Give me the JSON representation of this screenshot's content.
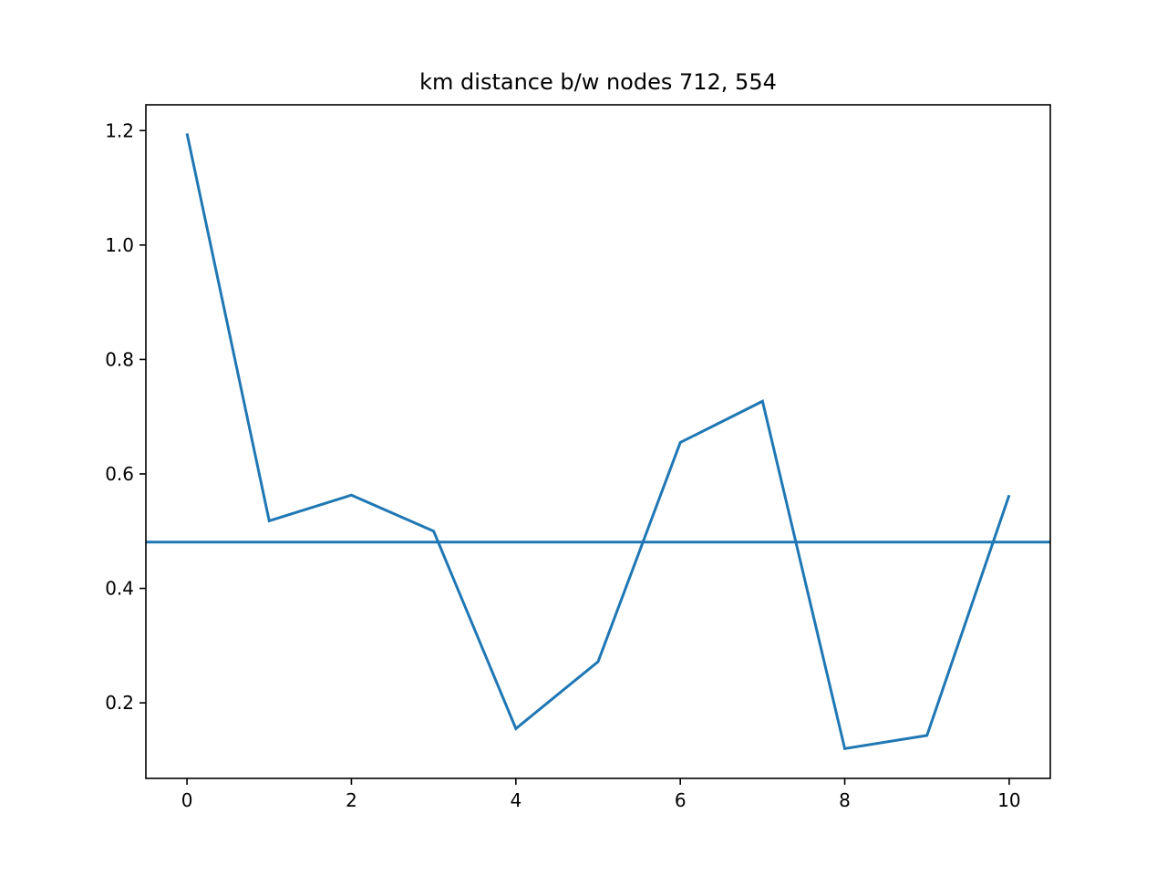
{
  "chart_data": {
    "type": "line",
    "title": "km distance b/w nodes 712, 554",
    "xlabel": "",
    "ylabel": "",
    "xlim": [
      -0.5,
      10.5
    ],
    "ylim": [
      0.068,
      1.245
    ],
    "x_ticks": [
      0,
      2,
      4,
      6,
      8,
      10
    ],
    "x_tick_labels": [
      "0",
      "2",
      "4",
      "6",
      "8",
      "10"
    ],
    "y_ticks": [
      0.2,
      0.4,
      0.6,
      0.8,
      1.0,
      1.2
    ],
    "y_tick_labels": [
      "0.2",
      "0.4",
      "0.6",
      "0.8",
      "1.0",
      "1.2"
    ],
    "grid": false,
    "series": [
      {
        "x": [
          0,
          1,
          2,
          3,
          4,
          5,
          6,
          7,
          8,
          9,
          10
        ],
        "values": [
          1.195,
          0.518,
          0.563,
          0.5,
          0.155,
          0.272,
          0.655,
          0.727,
          0.12,
          0.143,
          0.563
        ],
        "color": "#1f77b4"
      }
    ],
    "hlines": [
      {
        "y": 0.481,
        "color": "#1f77b4"
      }
    ]
  }
}
